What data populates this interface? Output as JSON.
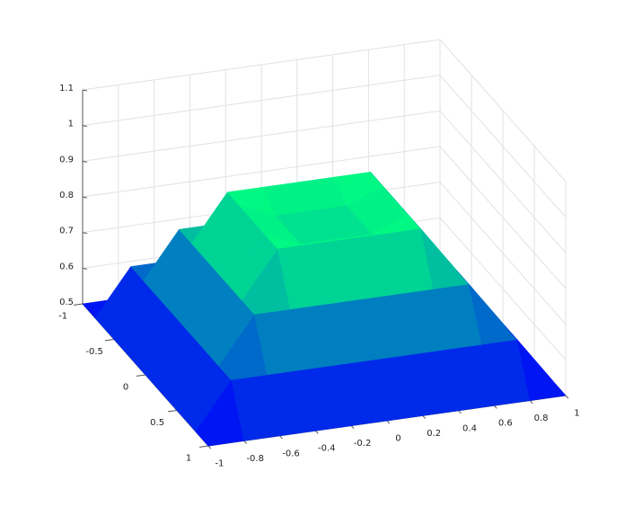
{
  "chart_data": {
    "type": "surface",
    "colormap": "winter",
    "grid": true,
    "x": [
      -1,
      -0.8,
      -0.6,
      -0.4,
      -0.2,
      0,
      0.2,
      0.4,
      0.6,
      0.8,
      1
    ],
    "y": [
      -1,
      -0.8,
      -0.6,
      -0.4,
      -0.2,
      0,
      0.2,
      0.4,
      0.6,
      0.8,
      1
    ],
    "z": [
      [
        0.5,
        0.5,
        0.5,
        0.5,
        0.5,
        0.5,
        0.5,
        0.5,
        0.5,
        0.5,
        0.5
      ],
      [
        0.5,
        0.63,
        0.63,
        0.63,
        0.63,
        0.63,
        0.63,
        0.63,
        0.63,
        0.63,
        0.5
      ],
      [
        0.5,
        0.63,
        0.76,
        0.76,
        0.76,
        0.76,
        0.76,
        0.76,
        0.76,
        0.63,
        0.5
      ],
      [
        0.5,
        0.63,
        0.76,
        0.89,
        0.89,
        0.89,
        0.89,
        0.89,
        0.76,
        0.63,
        0.5
      ],
      [
        0.5,
        0.63,
        0.76,
        0.89,
        0.85,
        0.85,
        0.85,
        0.89,
        0.76,
        0.63,
        0.5
      ],
      [
        0.5,
        0.63,
        0.76,
        0.89,
        0.85,
        0.83,
        0.85,
        0.89,
        0.76,
        0.63,
        0.5
      ],
      [
        0.5,
        0.63,
        0.76,
        0.89,
        0.85,
        0.85,
        0.85,
        0.89,
        0.76,
        0.63,
        0.5
      ],
      [
        0.5,
        0.63,
        0.76,
        0.89,
        0.89,
        0.89,
        0.89,
        0.89,
        0.76,
        0.63,
        0.5
      ],
      [
        0.5,
        0.63,
        0.76,
        0.76,
        0.76,
        0.76,
        0.76,
        0.76,
        0.76,
        0.63,
        0.5
      ],
      [
        0.5,
        0.63,
        0.63,
        0.63,
        0.63,
        0.63,
        0.63,
        0.63,
        0.63,
        0.63,
        0.5
      ],
      [
        0.5,
        0.5,
        0.5,
        0.5,
        0.5,
        0.5,
        0.5,
        0.5,
        0.5,
        0.5,
        0.5
      ]
    ],
    "xlim": [
      -1,
      1
    ],
    "ylim": [
      -1,
      1
    ],
    "zlim": [
      0.5,
      1.1
    ],
    "xticks": [
      -1,
      -0.8,
      -0.6,
      -0.4,
      -0.2,
      0,
      0.2,
      0.4,
      0.6,
      0.8,
      1
    ],
    "yticks": [
      -1,
      -0.5,
      0,
      0.5,
      1
    ],
    "zticks": [
      0.5,
      0.6,
      0.7,
      0.8,
      0.9,
      1,
      1.1
    ]
  }
}
